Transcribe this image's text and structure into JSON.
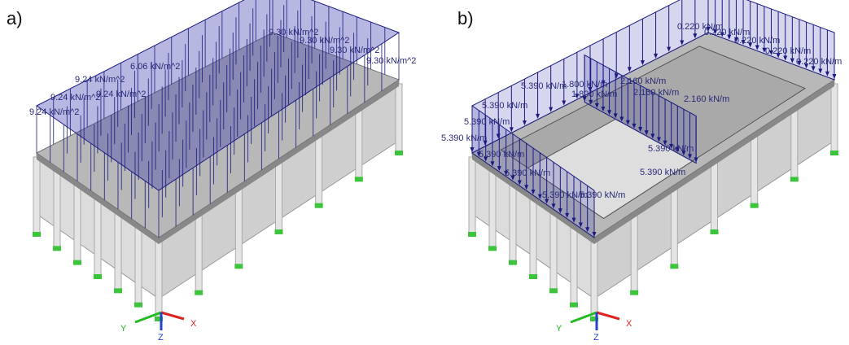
{
  "panels": [
    {
      "label": "a)",
      "load_labels": [
        "9.30 kN/m^2",
        "9.30 kN/m^2",
        "9.30 kN/m^2",
        "9.30 kN/m^2",
        "6.06 kN/m^2",
        "9.24 kN/m^2",
        "9.24 kN/m^2",
        "9.24 kN/m^2",
        "9.24 kN/m^2"
      ],
      "axes": {
        "x": "X",
        "y": "Y",
        "z": "Z"
      }
    },
    {
      "label": "b)",
      "load_labels": [
        "0.220 kN/m",
        "0.220 kN/m",
        "0.220 kN/m",
        "0.220 kN/m",
        "0.220 kN/m",
        "1.800 kN/m",
        "1.800 kN/m",
        "2.160 kN/m",
        "2.160 kN/m",
        "2.160 kN/m",
        "5.390 kN/m",
        "5.390 kN/m",
        "5.390 kN/m",
        "5.390 kN/m",
        "5.390 kN/m",
        "5.390 kN/m",
        "5.390 kN/m",
        "5.390 kN/m",
        "5.390 kN/m",
        "5.390 kN/m"
      ],
      "axes": {
        "x": "X",
        "y": "Y",
        "z": "Z"
      }
    }
  ]
}
